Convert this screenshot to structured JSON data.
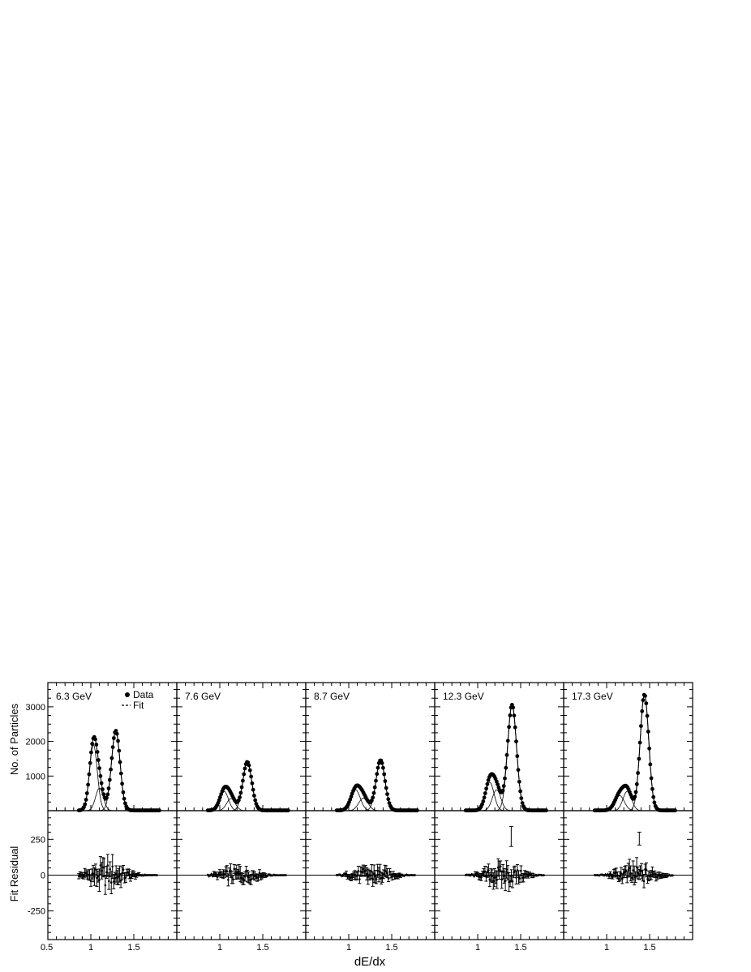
{
  "figure": {
    "xlabel": "dE/dx",
    "ylabel_top": "No. of Particles",
    "ylabel_bottom": "Fit Residual",
    "x_ticks_first": [
      "0.5",
      "1",
      "1.5"
    ],
    "x_ticks_other": [
      "1",
      "1.5"
    ],
    "y_ticks_top": [
      "1000",
      "2000",
      "3000"
    ],
    "y_ticks_bottom": [
      "250",
      "0",
      "-250"
    ],
    "legend": {
      "data": "Data",
      "fit": "Fit",
      "position": "top-right of first panel"
    },
    "colors": {
      "ink": "#000000",
      "background": "#ffffff"
    }
  },
  "chart_data": [
    {
      "type": "scatter",
      "panel_label": "6.3 GeV",
      "x_range": [
        0.5,
        2.0
      ],
      "y_range_top": [
        0,
        3700
      ],
      "y_range_bottom": [
        -450,
        450
      ],
      "components": [
        {
          "mu": 1.03,
          "sigma": 0.045,
          "amp": 1900
        },
        {
          "mu": 1.1,
          "sigma": 0.045,
          "amp": 650
        },
        {
          "mu": 1.29,
          "sigma": 0.05,
          "amp": 2300
        }
      ],
      "residual_amplitude": 60,
      "outlier": null
    },
    {
      "type": "scatter",
      "panel_label": "7.6 GeV",
      "x_range": [
        0.5,
        2.0
      ],
      "y_range_top": [
        0,
        3700
      ],
      "y_range_bottom": [
        -450,
        450
      ],
      "components": [
        {
          "mu": 1.05,
          "sigma": 0.05,
          "amp": 560
        },
        {
          "mu": 1.13,
          "sigma": 0.05,
          "amp": 350
        },
        {
          "mu": 1.32,
          "sigma": 0.052,
          "amp": 1400
        }
      ],
      "residual_amplitude": 35,
      "outlier": null
    },
    {
      "type": "scatter",
      "panel_label": "8.7 GeV",
      "x_range": [
        0.5,
        2.0
      ],
      "y_range_top": [
        0,
        3700
      ],
      "y_range_bottom": [
        -450,
        450
      ],
      "components": [
        {
          "mu": 1.08,
          "sigma": 0.055,
          "amp": 600
        },
        {
          "mu": 1.17,
          "sigma": 0.055,
          "amp": 360
        },
        {
          "mu": 1.37,
          "sigma": 0.052,
          "amp": 1450
        }
      ],
      "residual_amplitude": 40,
      "outlier": null
    },
    {
      "type": "scatter",
      "panel_label": "12.3 GeV",
      "x_range": [
        0.5,
        2.0
      ],
      "y_range_top": [
        0,
        3700
      ],
      "y_range_bottom": [
        -450,
        450
      ],
      "components": [
        {
          "mu": 1.14,
          "sigma": 0.05,
          "amp": 820
        },
        {
          "mu": 1.22,
          "sigma": 0.05,
          "amp": 600
        },
        {
          "mu": 1.4,
          "sigma": 0.052,
          "amp": 3050
        }
      ],
      "residual_amplitude": 50,
      "outlier": {
        "x": 1.39,
        "y": 270,
        "err": 70
      }
    },
    {
      "type": "scatter",
      "panel_label": "17.3 GeV",
      "x_range": [
        0.5,
        2.0
      ],
      "y_range_top": [
        0,
        3700
      ],
      "y_range_bottom": [
        -450,
        450
      ],
      "components": [
        {
          "mu": 1.15,
          "sigma": 0.055,
          "amp": 440
        },
        {
          "mu": 1.24,
          "sigma": 0.05,
          "amp": 560
        },
        {
          "mu": 1.44,
          "sigma": 0.05,
          "amp": 3350
        }
      ],
      "residual_amplitude": 45,
      "outlier": {
        "x": 1.38,
        "y": 255,
        "err": 45
      }
    }
  ]
}
